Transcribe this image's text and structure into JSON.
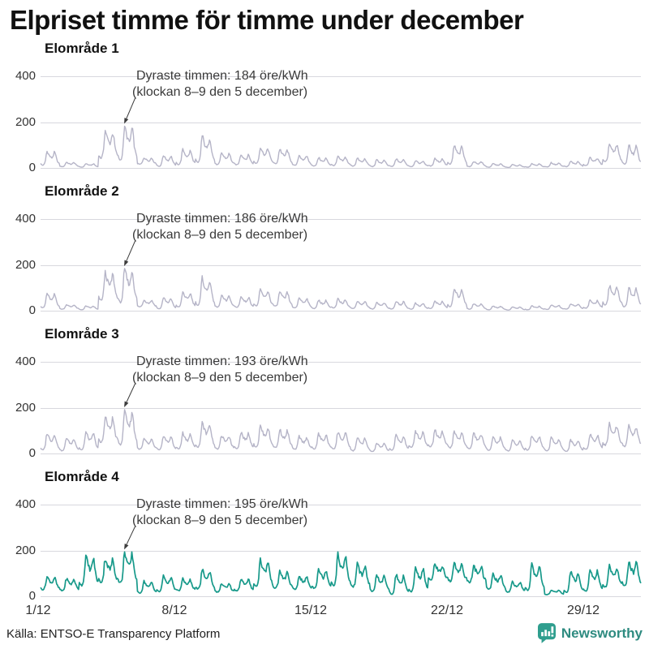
{
  "title": "Elpriset timme för timme under december",
  "source": "Källa: ENTSO-E Transparency Platform",
  "logo": {
    "text": "Newsworthy",
    "icon": "bar-chart-speech-bubble-icon",
    "color": "#2f9e8e",
    "text_color": "#2e8b80"
  },
  "colors": {
    "grid": "#d8d8de",
    "line_default": "#b5b4c7",
    "line_highlight": "#17998a",
    "annotation": "#3a3a3a",
    "arrow": "#3c3c3c"
  },
  "chart_data": {
    "type": "line",
    "unit": "öre/kWh",
    "x_unit": "timmar i december (1/12–31/12, timvärden)",
    "ylim": [
      0,
      400
    ],
    "yticks": [
      "400",
      "200",
      "0"
    ],
    "grid": "horizontal",
    "legend": "none",
    "xticks": [
      {
        "label": "1/12",
        "day": 1
      },
      {
        "label": "8/12",
        "day": 8
      },
      {
        "label": "15/12",
        "day": 15
      },
      {
        "label": "22/12",
        "day": 22
      },
      {
        "label": "29/12",
        "day": 29
      }
    ],
    "charts": [
      {
        "title": "Elområde 1",
        "line_color": "#b5b4c7",
        "line_width": 1.4,
        "annotation": {
          "line1": "Dyraste timmen: 184 öre/kWh",
          "line2": "(klockan 8–9 den 5 december)",
          "value": 184,
          "day": 5,
          "hour": 8
        },
        "daily_peaks": [
          75,
          28,
          22,
          165,
          184,
          48,
          58,
          82,
          142,
          68,
          62,
          92,
          85,
          58,
          48,
          52,
          45,
          38,
          42,
          35,
          45,
          100,
          32,
          22,
          18,
          22,
          26,
          32,
          48,
          108,
          102
        ],
        "daily_lows": [
          12,
          8,
          6,
          40,
          30,
          18,
          8,
          15,
          20,
          15,
          15,
          20,
          18,
          12,
          10,
          12,
          10,
          8,
          8,
          8,
          10,
          15,
          8,
          6,
          5,
          6,
          7,
          8,
          12,
          25,
          15
        ]
      },
      {
        "title": "Elområde 2",
        "line_color": "#b5b4c7",
        "line_width": 1.4,
        "annotation": {
          "line1": "Dyraste timmen: 186 öre/kWh",
          "line2": "(klockan 8–9 den 5 december)",
          "value": 186,
          "day": 5,
          "hour": 8
        },
        "daily_peaks": [
          78,
          30,
          24,
          168,
          186,
          50,
          60,
          84,
          144,
          70,
          64,
          94,
          86,
          60,
          50,
          54,
          46,
          40,
          44,
          36,
          46,
          102,
          34,
          24,
          20,
          24,
          28,
          34,
          50,
          110,
          104
        ],
        "daily_lows": [
          13,
          9,
          7,
          42,
          32,
          19,
          9,
          16,
          21,
          16,
          16,
          21,
          19,
          13,
          11,
          13,
          11,
          9,
          9,
          9,
          11,
          16,
          9,
          7,
          6,
          7,
          8,
          9,
          13,
          26,
          16
        ]
      },
      {
        "title": "Elområde 3",
        "line_color": "#b5b4c7",
        "line_width": 1.4,
        "annotation": {
          "line1": "Dyraste timmen: 193 öre/kWh",
          "line2": "(klockan 8–9 den 5 december)",
          "value": 193,
          "day": 5,
          "hour": 8
        },
        "daily_peaks": [
          92,
          72,
          96,
          162,
          193,
          66,
          82,
          92,
          140,
          82,
          96,
          122,
          106,
          78,
          88,
          96,
          72,
          48,
          82,
          102,
          106,
          98,
          92,
          76,
          62,
          82,
          72,
          62,
          88,
          132,
          126
        ],
        "daily_lows": [
          15,
          12,
          15,
          45,
          35,
          20,
          15,
          20,
          25,
          20,
          22,
          28,
          25,
          18,
          20,
          20,
          12,
          10,
          15,
          25,
          30,
          25,
          20,
          15,
          12,
          15,
          12,
          10,
          18,
          35,
          30
        ]
      },
      {
        "title": "Elområde 4",
        "line_color": "#17998a",
        "line_width": 1.7,
        "annotation": {
          "line1": "Dyraste timmen: 195 öre/kWh",
          "line2": "(klockan 8–9 den 5 december)",
          "value": 195,
          "day": 5,
          "hour": 8
        },
        "daily_peaks": [
          88,
          80,
          176,
          168,
          195,
          68,
          92,
          78,
          118,
          58,
          78,
          162,
          112,
          92,
          122,
          182,
          142,
          96,
          98,
          132,
          142,
          148,
          136,
          100,
          65,
          140,
          30,
          115,
          120,
          135,
          155
        ],
        "daily_lows": [
          30,
          25,
          45,
          60,
          55,
          15,
          20,
          25,
          30,
          20,
          25,
          40,
          35,
          30,
          35,
          45,
          40,
          20,
          8,
          18,
          75,
          65,
          60,
          30,
          20,
          25,
          10,
          15,
          20,
          40,
          45
        ]
      }
    ]
  }
}
